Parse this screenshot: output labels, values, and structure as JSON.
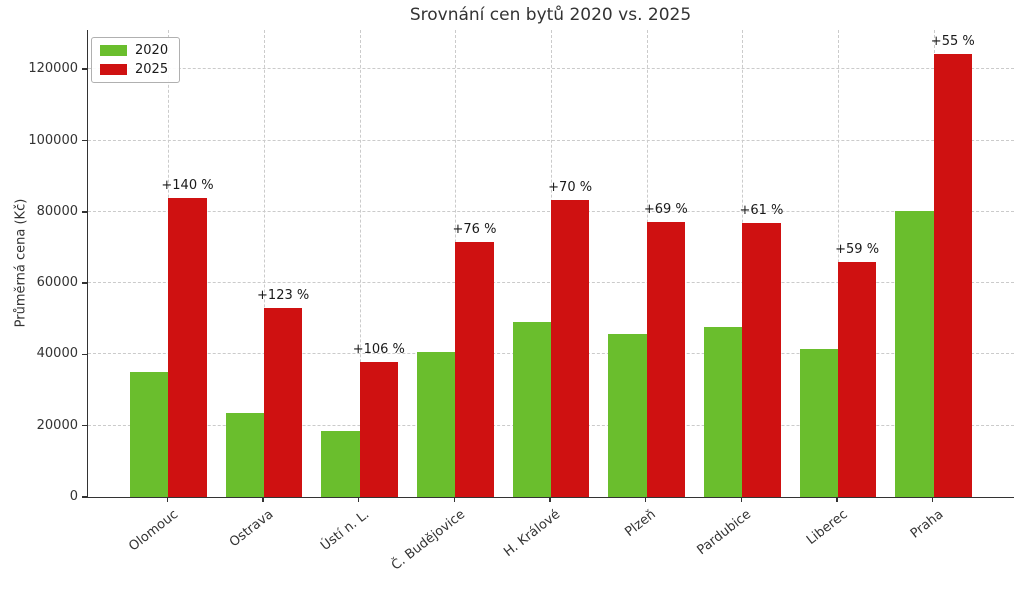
{
  "chart_data": {
    "type": "bar",
    "title": "Srovnání cen bytů 2020 vs. 2025",
    "ylabel": "Průměrná cena (Kč)",
    "xlabel": "",
    "categories": [
      "Olomouc",
      "Ostrava",
      "Ústí n. L.",
      "Č. Budějovice",
      "H. Králové",
      "Plzeň",
      "Pardubice",
      "Liberec",
      "Praha"
    ],
    "series": [
      {
        "name": "2020",
        "color": "#6abe2d",
        "values": [
          35000,
          23700,
          18400,
          40700,
          49000,
          45600,
          47700,
          41400,
          80300
        ]
      },
      {
        "name": "2025",
        "color": "#cf1111",
        "values": [
          84000,
          52900,
          37900,
          71600,
          83300,
          77100,
          76800,
          65800,
          124400
        ]
      }
    ],
    "annotations": [
      "+140 %",
      "+123 %",
      "+106 %",
      "+76 %",
      "+70 %",
      "+69 %",
      "+61 %",
      "+59 %",
      "+55 %"
    ],
    "yticks": [
      0,
      20000,
      40000,
      60000,
      80000,
      100000,
      120000
    ],
    "ylim": [
      0,
      131000
    ],
    "grid": true,
    "legend_position": "upper left",
    "colors": {
      "grid": "#cbcbcb",
      "axis": "#333333",
      "text": "#333333"
    }
  }
}
